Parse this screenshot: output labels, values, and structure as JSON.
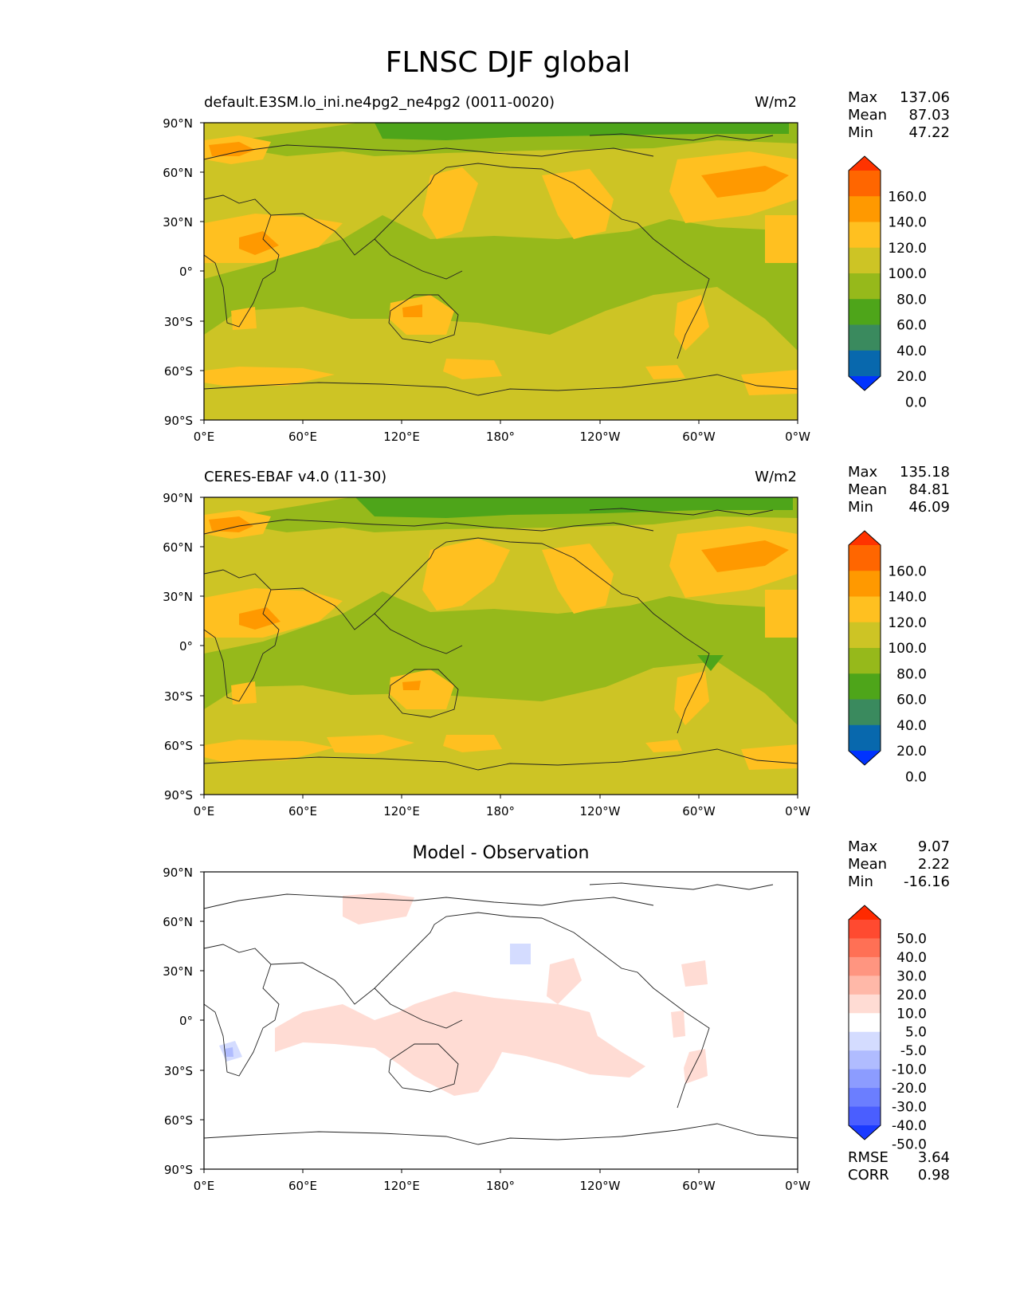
{
  "figure_title": "FLNSC DJF global",
  "chart_data": [
    {
      "type": "heatmap",
      "title": "default.E3SM.lo_ini.ne4pg2_ne4pg2 (0011-0020)",
      "units": "W/m2",
      "x_ticks": [
        "0°E",
        "60°E",
        "120°E",
        "180°",
        "120°W",
        "60°W",
        "0°W"
      ],
      "y_ticks": [
        "90°N",
        "60°N",
        "30°N",
        "0°",
        "30°S",
        "60°S",
        "90°S"
      ],
      "xlim": [
        0,
        360
      ],
      "ylim": [
        -90,
        90
      ],
      "stats": [
        {
          "label": "Max",
          "value": "137.06"
        },
        {
          "label": "Mean",
          "value": "87.03"
        },
        {
          "label": "Min",
          "value": "47.22"
        }
      ],
      "colorbar": {
        "levels": [
          "160.0",
          "140.0",
          "120.0",
          "100.0",
          "80.0",
          "60.0",
          "40.0",
          "20.0",
          "0.0"
        ],
        "colors": [
          "#ff3300",
          "#ff6600",
          "#ff9900",
          "#ffc020",
          "#cdc425",
          "#96b91b",
          "#4ea51a",
          "#3a8a5e",
          "#0868ad",
          "#0033ff"
        ]
      }
    },
    {
      "type": "heatmap",
      "title": "CERES-EBAF v4.0 (11-30)",
      "units": "W/m2",
      "x_ticks": [
        "0°E",
        "60°E",
        "120°E",
        "180°",
        "120°W",
        "60°W",
        "0°W"
      ],
      "y_ticks": [
        "90°N",
        "60°N",
        "30°N",
        "0°",
        "30°S",
        "60°S",
        "90°S"
      ],
      "xlim": [
        0,
        360
      ],
      "ylim": [
        -90,
        90
      ],
      "stats": [
        {
          "label": "Max",
          "value": "135.18"
        },
        {
          "label": "Mean",
          "value": "84.81"
        },
        {
          "label": "Min",
          "value": "46.09"
        }
      ],
      "colorbar": {
        "levels": [
          "160.0",
          "140.0",
          "120.0",
          "100.0",
          "80.0",
          "60.0",
          "40.0",
          "20.0",
          "0.0"
        ],
        "colors": [
          "#ff3300",
          "#ff6600",
          "#ff9900",
          "#ffc020",
          "#cdc425",
          "#96b91b",
          "#4ea51a",
          "#3a8a5e",
          "#0868ad",
          "#0033ff"
        ]
      }
    },
    {
      "type": "heatmap",
      "title": "Model - Observation",
      "units": "",
      "x_ticks": [
        "0°E",
        "60°E",
        "120°E",
        "180°",
        "120°W",
        "60°W",
        "0°W"
      ],
      "y_ticks": [
        "90°N",
        "60°N",
        "30°N",
        "0°",
        "30°S",
        "60°S",
        "90°S"
      ],
      "xlim": [
        0,
        360
      ],
      "ylim": [
        -90,
        90
      ],
      "stats": [
        {
          "label": "Max",
          "value": "9.07"
        },
        {
          "label": "Mean",
          "value": "2.22"
        },
        {
          "label": "Min",
          "value": "-16.16"
        }
      ],
      "extra_stats": [
        {
          "label": "RMSE",
          "value": "3.64"
        },
        {
          "label": "CORR",
          "value": "0.98"
        }
      ],
      "colorbar": {
        "levels": [
          "50.0",
          "40.0",
          "30.0",
          "20.0",
          "10.0",
          "5.0",
          "-5.0",
          "-10.0",
          "-20.0",
          "-30.0",
          "-40.0",
          "-50.0"
        ],
        "colors": [
          "#ff2a00",
          "#ff4a30",
          "#ff7055",
          "#ff9580",
          "#ffb8a8",
          "#ffdcd4",
          "#ffffff",
          "#d4dcff",
          "#b0bcff",
          "#8c9cff",
          "#6b7eff",
          "#4a5eff",
          "#1a3aff"
        ]
      }
    }
  ]
}
